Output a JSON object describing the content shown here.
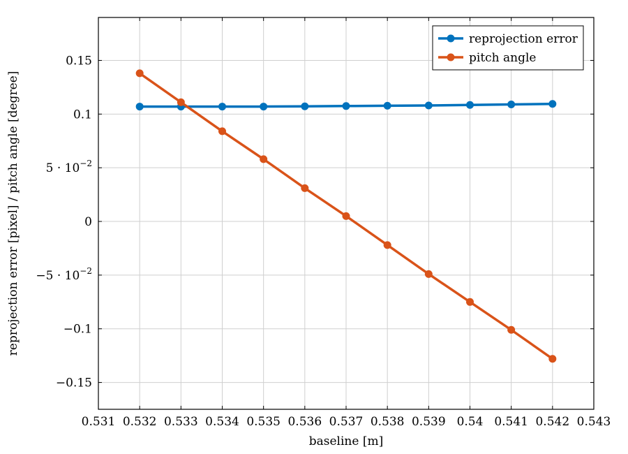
{
  "chart_data": {
    "type": "line",
    "xlabel": "baseline [m]",
    "ylabel": "reprojection error [pixel] / pitch angle [degree]",
    "xlim": [
      0.531,
      0.543
    ],
    "ylim": [
      -0.175,
      0.19
    ],
    "x_ticks": [
      0.531,
      0.532,
      0.533,
      0.534,
      0.535,
      0.536,
      0.537,
      0.538,
      0.539,
      0.54,
      0.541,
      0.542,
      0.543
    ],
    "x_tick_labels": [
      "0.531",
      "0.532",
      "0.533",
      "0.534",
      "0.535",
      "0.536",
      "0.537",
      "0.538",
      "0.539",
      "0.54",
      "0.541",
      "0.542",
      "0.543"
    ],
    "y_ticks": [
      {
        "value": -0.15,
        "label": "−0.15"
      },
      {
        "value": -0.1,
        "label": "−0.1"
      },
      {
        "value": -0.05,
        "label": "−5 · 10",
        "exp": "−2"
      },
      {
        "value": 0,
        "label": "0"
      },
      {
        "value": 0.05,
        "label": "5 · 10",
        "exp": "−2"
      },
      {
        "value": 0.1,
        "label": "0.1"
      },
      {
        "value": 0.15,
        "label": "0.15"
      }
    ],
    "grid": true,
    "legend_position": "top-right",
    "x": [
      0.532,
      0.533,
      0.534,
      0.535,
      0.536,
      0.537,
      0.538,
      0.539,
      0.54,
      0.541,
      0.542
    ],
    "series": [
      {
        "name": "reprojection error",
        "color": "#0072bd",
        "values": [
          0.107,
          0.107,
          0.107,
          0.107,
          0.1072,
          0.1075,
          0.1078,
          0.108,
          0.1085,
          0.109,
          0.1095
        ]
      },
      {
        "name": "pitch angle",
        "color": "#d95319",
        "values": [
          0.138,
          0.111,
          0.084,
          0.058,
          0.031,
          0.005,
          -0.022,
          -0.049,
          -0.075,
          -0.101,
          -0.128
        ]
      }
    ]
  }
}
